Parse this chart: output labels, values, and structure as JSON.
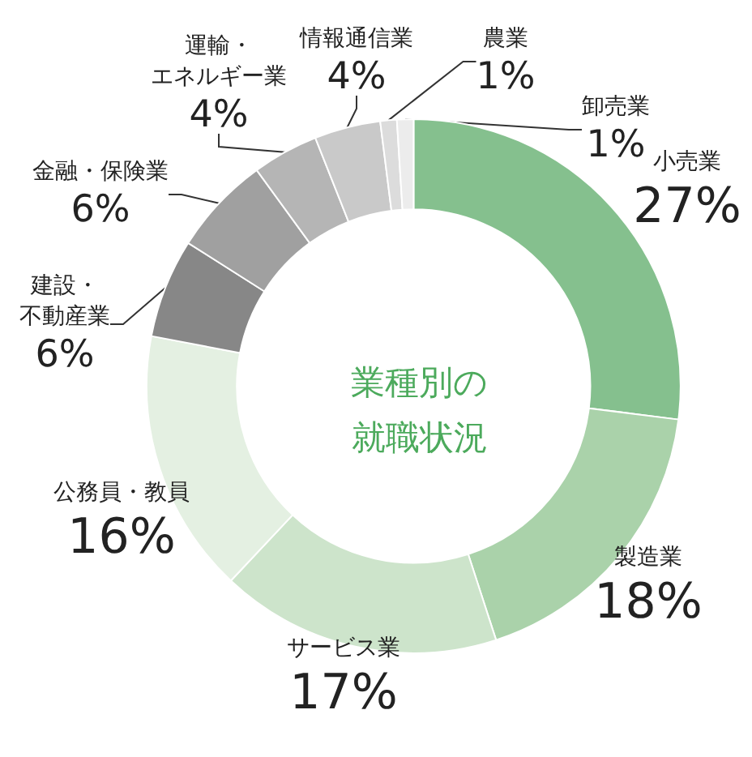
{
  "chart_data": {
    "type": "donut",
    "title": "業種別の就職状況",
    "categories": [
      "小売業",
      "製造業",
      "サービス業",
      "公務員・教員",
      "建設・不動産業",
      "金融・保険業",
      "運輸・エネルギー業",
      "情報通信業",
      "農業",
      "卸売業"
    ],
    "values": [
      27,
      18,
      17,
      16,
      6,
      6,
      4,
      4,
      1,
      1
    ],
    "value_labels": [
      "27%",
      "18%",
      "17%",
      "16%",
      "6%",
      "6%",
      "4%",
      "4%",
      "1%",
      "1%"
    ],
    "colors": [
      "#85c08e",
      "#aad2aa",
      "#cde4cb",
      "#e4f0e2",
      "#878787",
      "#a0a0a0",
      "#b5b5b5",
      "#c9c9c9",
      "#dcdcdc",
      "#ececec"
    ],
    "legend": false
  }
}
